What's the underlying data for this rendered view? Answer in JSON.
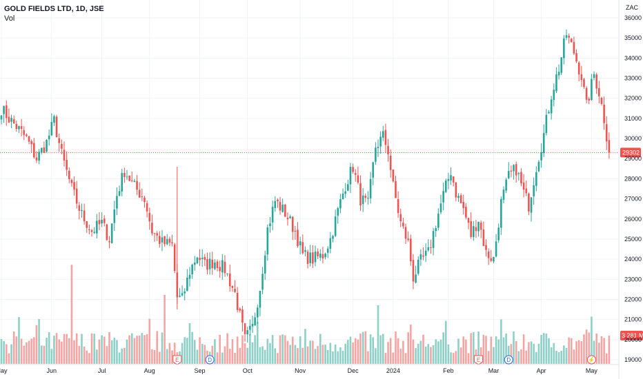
{
  "legend": {
    "title": "GOLD FIELDS LTD, 1D, JSE",
    "vol_label": "Vol"
  },
  "currency": "ZAC",
  "current_price_tag": "29302",
  "volume_tag": "3.281 M",
  "colors": {
    "up": "#26a69a",
    "down": "#ef5350",
    "vol_up": "#8dd0c7",
    "vol_down": "#f4a5a3",
    "grid": "#f0f3fa",
    "price_line": "#ef5350"
  },
  "event_markers": [
    {
      "label": "E",
      "date_index": 70,
      "kind": "earnings"
    },
    {
      "label": "D",
      "date_index": 83,
      "kind": "dividend"
    },
    {
      "label": "E",
      "date_index": 190,
      "kind": "earnings"
    },
    {
      "label": "D",
      "date_index": 202,
      "kind": "dividend"
    },
    {
      "label": "⚡",
      "date_index": 235,
      "kind": "split"
    }
  ],
  "chart_data": {
    "type": "candlestick",
    "title": "GOLD FIELDS LTD, 1D, JSE",
    "price_ticks": [
      "36000",
      "35000",
      "34000",
      "33000",
      "32000",
      "31000",
      "30000",
      "29000",
      "28000",
      "27000",
      "26000",
      "25000",
      "24000",
      "23000",
      "22000",
      "21000",
      "20000",
      "19000"
    ],
    "ylim": [
      18500,
      36500
    ],
    "x_tick_labels": [
      {
        "label": "May",
        "index": 0
      },
      {
        "label": "Jun",
        "index": 20
      },
      {
        "label": "Jul",
        "index": 40
      },
      {
        "label": "Aug",
        "index": 59
      },
      {
        "label": "Sep",
        "index": 79
      },
      {
        "label": "Oct",
        "index": 98
      },
      {
        "label": "Nov",
        "index": 119
      },
      {
        "label": "Dec",
        "index": 140
      },
      {
        "label": "2024",
        "index": 156
      },
      {
        "label": "Feb",
        "index": 178
      },
      {
        "label": "Mar",
        "index": 196
      },
      {
        "label": "Apr",
        "index": 215
      },
      {
        "label": "May",
        "index": 235
      }
    ],
    "anchors": [
      [
        0,
        31500
      ],
      [
        3,
        31000
      ],
      [
        6,
        30600
      ],
      [
        10,
        30000
      ],
      [
        14,
        29000
      ],
      [
        18,
        29800
      ],
      [
        21,
        30900
      ],
      [
        24,
        29200
      ],
      [
        28,
        27500
      ],
      [
        32,
        26200
      ],
      [
        36,
        25400
      ],
      [
        40,
        25800
      ],
      [
        43,
        25000
      ],
      [
        46,
        27200
      ],
      [
        49,
        28400
      ],
      [
        53,
        27600
      ],
      [
        57,
        27000
      ],
      [
        60,
        25400
      ],
      [
        64,
        24800
      ],
      [
        68,
        24700
      ],
      [
        70,
        22100
      ],
      [
        72,
        22000
      ],
      [
        75,
        23400
      ],
      [
        78,
        24200
      ],
      [
        81,
        23700
      ],
      [
        85,
        23900
      ],
      [
        89,
        23500
      ],
      [
        93,
        22300
      ],
      [
        97,
        20000
      ],
      [
        100,
        20600
      ],
      [
        103,
        22600
      ],
      [
        106,
        25500
      ],
      [
        109,
        26900
      ],
      [
        113,
        26300
      ],
      [
        117,
        25400
      ],
      [
        120,
        24200
      ],
      [
        124,
        24000
      ],
      [
        128,
        24200
      ],
      [
        131,
        25000
      ],
      [
        134,
        26400
      ],
      [
        137,
        27700
      ],
      [
        140,
        28600
      ],
      [
        143,
        27000
      ],
      [
        146,
        26700
      ],
      [
        149,
        29600
      ],
      [
        152,
        30100
      ],
      [
        154,
        29400
      ],
      [
        156,
        27600
      ],
      [
        159,
        25800
      ],
      [
        162,
        24800
      ],
      [
        164,
        23100
      ],
      [
        167,
        23900
      ],
      [
        170,
        24300
      ],
      [
        173,
        25800
      ],
      [
        176,
        27200
      ],
      [
        179,
        28400
      ],
      [
        181,
        27300
      ],
      [
        184,
        26500
      ],
      [
        187,
        25200
      ],
      [
        190,
        26000
      ],
      [
        193,
        24300
      ],
      [
        196,
        24000
      ],
      [
        199,
        26800
      ],
      [
        202,
        28100
      ],
      [
        205,
        28500
      ],
      [
        208,
        27300
      ],
      [
        210,
        26700
      ],
      [
        213,
        28600
      ],
      [
        216,
        30200
      ],
      [
        219,
        32200
      ],
      [
        222,
        33500
      ],
      [
        225,
        35200
      ],
      [
        228,
        34300
      ],
      [
        231,
        33100
      ],
      [
        233,
        31600
      ],
      [
        236,
        33200
      ],
      [
        238,
        32300
      ],
      [
        240,
        31000
      ],
      [
        242,
        29302
      ]
    ],
    "last_close": 29302,
    "volume_range_millions": [
      0,
      12
    ],
    "current_volume_millions": 3.281,
    "volume_spikes": [
      {
        "index": 28,
        "value_millions": 11.5
      },
      {
        "index": 65,
        "value_millions": 8.0
      },
      {
        "index": 150,
        "value_millions": 6.8
      },
      {
        "index": 15,
        "value_millions": 5.2
      }
    ]
  }
}
